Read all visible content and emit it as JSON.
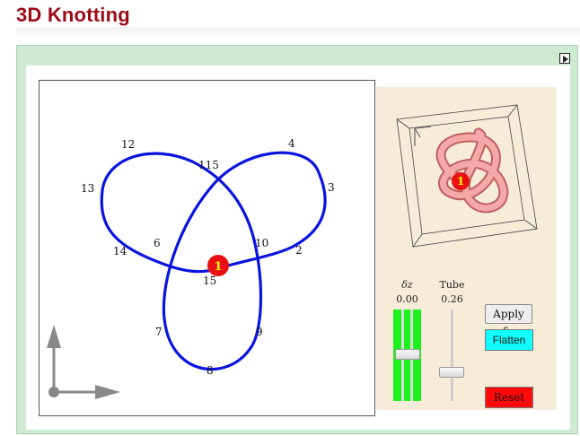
{
  "page": {
    "title": "3D Knotting"
  },
  "colors": {
    "knot": "#0a14e0",
    "marker": "#e81010",
    "marker_text": "#ffff00",
    "panel_bg": "#f6ecd8",
    "tube": "#f2a0a0",
    "dz_slider": "#1cf21a",
    "flatten": "#12ffff",
    "reset": "#ff0a0a"
  },
  "knot": {
    "labels": [
      "12",
      "4",
      "115",
      "13",
      "3",
      "6",
      "10",
      "14",
      "2",
      "15",
      "7",
      "9",
      "8"
    ],
    "marker_label": "1"
  },
  "view3d": {
    "marker_label": "1"
  },
  "controls": {
    "dz": {
      "label": "δz",
      "value": "0.00"
    },
    "tube": {
      "label": "Tube",
      "value": "0.26"
    },
    "apply_label": "Apply δz",
    "flatten_label": "Flatten",
    "reset_label": "Reset"
  },
  "icons": {
    "expand": "play-triangle-icon",
    "axes": "axes-arrows-icon"
  }
}
